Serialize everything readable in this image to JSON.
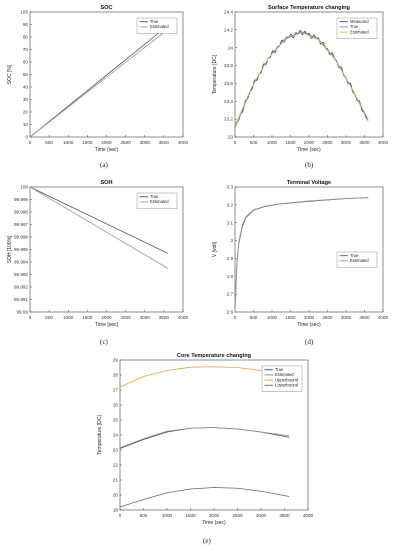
{
  "chart_data": [
    {
      "id": "a",
      "type": "line",
      "title": "SOC",
      "xlabel": "Time (sec)",
      "ylabel": "SOC [%]",
      "xlim": [
        0,
        4000
      ],
      "ylim": [
        0,
        100
      ],
      "xticks": [
        "0",
        "500",
        "1000",
        "1500",
        "2000",
        "2500",
        "3000",
        "3500",
        "4000"
      ],
      "yticks": [
        "0",
        "10",
        "20",
        "30",
        "40",
        "50",
        "60",
        "70",
        "80",
        "90",
        "100"
      ],
      "legend_position": "top-right",
      "series": [
        {
          "name": "True",
          "color": "#555555",
          "x": [
            0,
            3600
          ],
          "y": [
            0,
            89
          ]
        },
        {
          "name": "Estimated",
          "color": "#9a9a9a",
          "x": [
            0,
            3600
          ],
          "y": [
            0,
            86
          ]
        }
      ]
    },
    {
      "id": "b",
      "type": "line",
      "title": "Surface Temperature changing",
      "xlabel": "Time (sec)",
      "ylabel": "Temperature [DC]",
      "xlim": [
        0,
        4000
      ],
      "ylim": [
        23,
        24.4
      ],
      "xticks": [
        "0",
        "500",
        "1000",
        "1500",
        "2000",
        "2500",
        "3000",
        "3500",
        "4000"
      ],
      "yticks": [
        "23",
        "23.2",
        "23.4",
        "23.6",
        "23.8",
        "24",
        "24.2",
        "24.4"
      ],
      "legend_position": "top-right",
      "series": [
        {
          "name": "Measured",
          "color": "#2d4f8f",
          "x": [
            0,
            450,
            900,
            1350,
            1800,
            2250,
            2700,
            3150,
            3600
          ],
          "y": [
            23.1,
            23.55,
            23.88,
            24.1,
            24.18,
            24.1,
            23.88,
            23.55,
            23.18
          ]
        },
        {
          "name": "True",
          "color": "#6d8fc9",
          "x": [
            0,
            450,
            900,
            1350,
            1800,
            2250,
            2700,
            3150,
            3600
          ],
          "y": [
            23.1,
            23.55,
            23.88,
            24.1,
            24.18,
            24.1,
            23.88,
            23.55,
            23.18
          ]
        },
        {
          "name": "Estimated",
          "color": "#e3b23c",
          "x": [
            0,
            450,
            900,
            1350,
            1800,
            2250,
            2700,
            3150,
            3600
          ],
          "y": [
            23.12,
            23.56,
            23.88,
            24.09,
            24.17,
            24.09,
            23.87,
            23.55,
            23.2
          ]
        }
      ]
    },
    {
      "id": "c",
      "type": "line",
      "title": "SOH",
      "xlabel": "Time [sec]",
      "ylabel": "SOH [100%]",
      "xlim": [
        0,
        4000
      ],
      "ylim": [
        99.99,
        100
      ],
      "xticks": [
        "0",
        "500",
        "1000",
        "1500",
        "2000",
        "2500",
        "3000",
        "3500",
        "4000"
      ],
      "yticks": [
        "99.99",
        "99.991",
        "99.992",
        "99.993",
        "99.994",
        "99.995",
        "99.996",
        "99.997",
        "99.998",
        "99.999",
        "100"
      ],
      "legend_position": "top-right",
      "series": [
        {
          "name": "True",
          "color": "#555555",
          "x": [
            0,
            3600
          ],
          "y": [
            100,
            99.9947
          ]
        },
        {
          "name": "Estimated",
          "color": "#9a9a9a",
          "x": [
            0,
            3600
          ],
          "y": [
            100,
            99.9935
          ]
        }
      ]
    },
    {
      "id": "d",
      "type": "line",
      "title": "Terminal Voltage",
      "xlabel": "Time (sec)",
      "ylabel": "V [volt]",
      "xlim": [
        0,
        4000
      ],
      "ylim": [
        2.6,
        3.3
      ],
      "xticks": [
        "0",
        "500",
        "1000",
        "1500",
        "2000",
        "2500",
        "3000",
        "3500",
        "4000"
      ],
      "yticks": [
        "2.6",
        "2.7",
        "2.8",
        "2.9",
        "3",
        "3.1",
        "3.2",
        "3.3"
      ],
      "legend_position": "right",
      "series": [
        {
          "name": "True",
          "color": "#555555",
          "x": [
            0,
            50,
            100,
            200,
            300,
            500,
            800,
            1200,
            2000,
            3000,
            3600
          ],
          "y": [
            2.6,
            2.86,
            2.98,
            3.08,
            3.13,
            3.17,
            3.19,
            3.205,
            3.22,
            3.235,
            3.24
          ]
        },
        {
          "name": "Estimated",
          "color": "#9a9a9a",
          "x": [
            0,
            50,
            100,
            200,
            300,
            500,
            800,
            1200,
            2000,
            3000,
            3600
          ],
          "y": [
            2.6,
            2.87,
            2.99,
            3.09,
            3.135,
            3.172,
            3.192,
            3.206,
            3.222,
            3.236,
            3.241
          ]
        }
      ]
    },
    {
      "id": "e",
      "type": "line",
      "title": "Core Temperature changing",
      "xlabel": "Time (sec)",
      "ylabel": "Temperature [DC]",
      "xlim": [
        0,
        4000
      ],
      "ylim": [
        19,
        29
      ],
      "xticks": [
        "0",
        "500",
        "1000",
        "1500",
        "2000",
        "2500",
        "3000",
        "3500",
        "4000"
      ],
      "yticks": [
        "19",
        "20",
        "21",
        "22",
        "23",
        "24",
        "25",
        "26",
        "27",
        "28",
        "29"
      ],
      "legend_position": "top-right",
      "series": [
        {
          "name": "True",
          "color": "#2d4f8f",
          "x": [
            0,
            500,
            1000,
            1500,
            2000,
            2500,
            3000,
            3600
          ],
          "y": [
            23.1,
            23.7,
            24.2,
            24.45,
            24.5,
            24.4,
            24.2,
            23.85
          ]
        },
        {
          "name": "Estimated",
          "color": "#8c8c8c",
          "x": [
            0,
            500,
            1000,
            1500,
            2000,
            2500,
            3000,
            3600
          ],
          "y": [
            23.15,
            23.75,
            24.25,
            24.45,
            24.5,
            24.4,
            24.2,
            23.95
          ]
        },
        {
          "name": "Upperbound",
          "color": "#e3a43c",
          "x": [
            0,
            500,
            1000,
            1500,
            2000,
            2500,
            3000,
            3600
          ],
          "y": [
            27.2,
            27.9,
            28.3,
            28.52,
            28.55,
            28.5,
            28.3,
            27.95
          ]
        },
        {
          "name": "Lowerbound",
          "color": "#6b5a9e",
          "x": [
            0,
            500,
            1000,
            1500,
            2000,
            2500,
            3000,
            3600
          ],
          "y": [
            19.2,
            19.7,
            20.15,
            20.4,
            20.5,
            20.45,
            20.25,
            19.9
          ]
        }
      ]
    }
  ],
  "captions": [
    "(a)",
    "(b)",
    "(c)",
    "(d)",
    "(e)"
  ]
}
